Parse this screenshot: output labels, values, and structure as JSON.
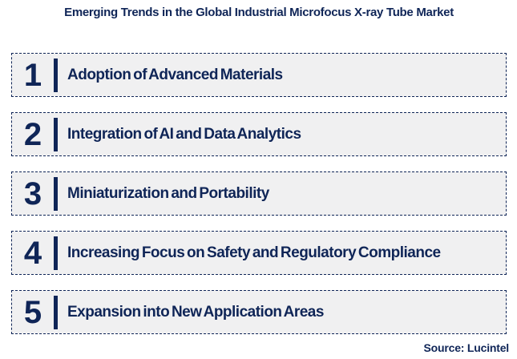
{
  "title": "Emerging Trends in the Global Industrial Microfocus X-ray Tube Market",
  "trends": [
    {
      "number": "1",
      "label": "Adoption of Advanced Materials"
    },
    {
      "number": "2",
      "label": "Integration of AI and Data Analytics"
    },
    {
      "number": "3",
      "label": "Miniaturization and Portability"
    },
    {
      "number": "4",
      "label": "Increasing Focus on Safety and Regulatory Compliance"
    },
    {
      "number": "5",
      "label": "Expansion into New Application Areas"
    }
  ],
  "source": "Source: Lucintel",
  "colors": {
    "navy": "#0f2557",
    "box_bg": "#f0f0f1",
    "page_bg": "#ffffff"
  }
}
